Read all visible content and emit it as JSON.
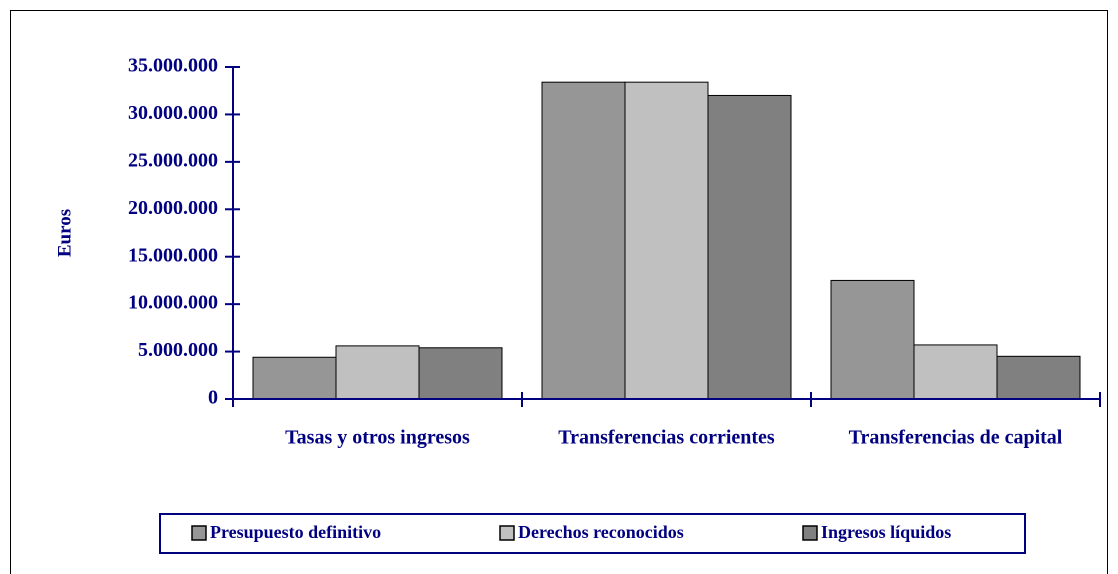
{
  "chart_data": {
    "type": "bar",
    "y_label": "Euros",
    "categories": [
      "Tasas y otros ingresos",
      "Transferencias corrientes",
      "Transferencias de capital"
    ],
    "series": [
      {
        "name": "Presupuesto definitivo",
        "color": "#969696",
        "values": [
          4400000,
          33400000,
          12500000
        ]
      },
      {
        "name": "Derechos reconocidos",
        "color": "#c0c0c0",
        "values": [
          5600000,
          33400000,
          5700000
        ]
      },
      {
        "name": "Ingresos líquidos",
        "color": "#808080",
        "values": [
          5400000,
          32000000,
          4500000
        ]
      }
    ],
    "ylim": [
      0,
      35000000
    ],
    "yticks": [
      {
        "value": 0,
        "label": "0"
      },
      {
        "value": 5000000,
        "label": "5.000.000"
      },
      {
        "value": 10000000,
        "label": "10.000.000"
      },
      {
        "value": 15000000,
        "label": "15.000.000"
      },
      {
        "value": 20000000,
        "label": "20.000.000"
      },
      {
        "value": 25000000,
        "label": "25.000.000"
      },
      {
        "value": 30000000,
        "label": "30.000.000"
      },
      {
        "value": 35000000,
        "label": "35.000.000"
      }
    ],
    "legend": "bottom"
  }
}
